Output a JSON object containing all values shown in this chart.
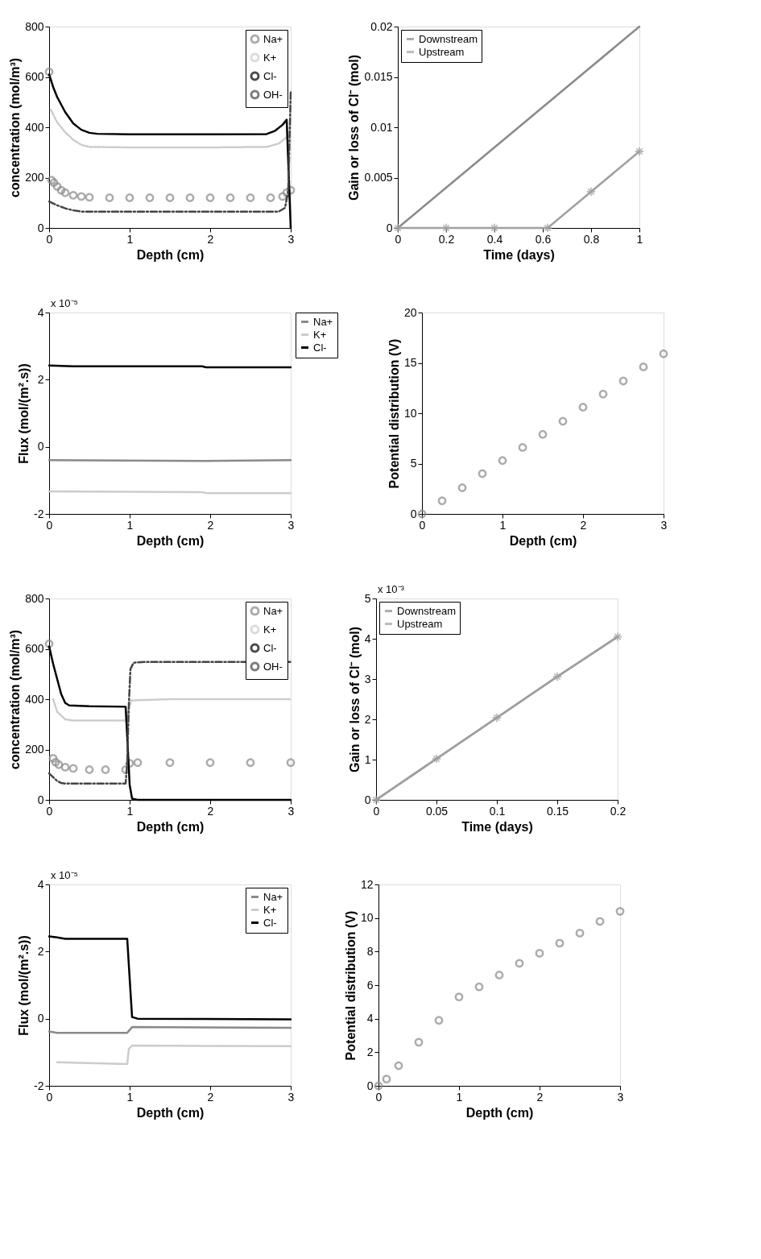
{
  "chart_data": [
    {
      "type": "line",
      "xlabel": "Depth (cm)",
      "ylabel": "concentration (mol/m³)",
      "xlim": [
        0,
        3
      ],
      "ylim": [
        0,
        800
      ],
      "xticks": [
        0,
        1,
        2,
        3
      ],
      "yticks": [
        0,
        200,
        400,
        600,
        800
      ],
      "legend": "top right",
      "series": [
        {
          "name": "Na+",
          "type": "scatter",
          "marker": "circle",
          "color": "#8a8a8a",
          "x": [
            0,
            0.03,
            0.06,
            0.1,
            0.15,
            0.2,
            0.3,
            0.4,
            0.5,
            0.75,
            1,
            1.25,
            1.5,
            1.75,
            2,
            2.25,
            2.5,
            2.75,
            2.9,
            2.95,
            3
          ],
          "values": [
            620,
            190,
            180,
            165,
            150,
            140,
            130,
            125,
            122,
            120,
            120,
            120,
            120,
            120,
            120,
            120,
            120,
            120,
            125,
            140,
            150
          ]
        },
        {
          "name": "K+",
          "line_style": "dotted",
          "color": "#cccccc",
          "x": [
            0.02,
            0.1,
            0.2,
            0.3,
            0.4,
            0.5,
            1,
            2,
            2.7,
            2.85,
            2.95
          ],
          "values": [
            470,
            420,
            380,
            350,
            330,
            322,
            320,
            320,
            322,
            335,
            360
          ]
        },
        {
          "name": "Cl-",
          "line_style": "solid",
          "color": "#000000",
          "x": [
            0,
            0.05,
            0.1,
            0.2,
            0.3,
            0.4,
            0.5,
            0.6,
            1,
            2,
            2.7,
            2.8,
            2.9,
            2.95,
            3
          ],
          "values": [
            610,
            560,
            520,
            460,
            415,
            390,
            378,
            374,
            372,
            372,
            373,
            385,
            410,
            430,
            0
          ]
        },
        {
          "name": "OH-",
          "line_style": "dashed",
          "color": "#444444",
          "x": [
            0,
            0.1,
            0.2,
            0.3,
            0.4,
            1,
            2,
            2.85,
            2.93,
            2.97,
            3
          ],
          "values": [
            105,
            90,
            78,
            70,
            65,
            65,
            65,
            65,
            80,
            150,
            540
          ]
        }
      ]
    },
    {
      "type": "line",
      "xlabel": "Time (days)",
      "ylabel": "Gain or loss of Cl⁻ (mol)",
      "xlim": [
        0,
        1
      ],
      "ylim": [
        0,
        0.02
      ],
      "xticks": [
        0,
        0.2,
        0.4,
        0.6,
        0.8,
        1
      ],
      "yticks": [
        0,
        0.005,
        0.01,
        0.015,
        0.02
      ],
      "legend": "top left",
      "series": [
        {
          "name": "Downstream",
          "line_style": "solid",
          "color": "#8a8a8a",
          "x": [
            0,
            0.25,
            0.5,
            0.75,
            1
          ],
          "values": [
            0,
            0.005,
            0.01,
            0.015,
            0.02
          ]
        },
        {
          "name": "Upstream",
          "line_style": "solid",
          "marker": "cross",
          "color": "#a0a0a0",
          "x": [
            0,
            0.2,
            0.4,
            0.62,
            0.8,
            1
          ],
          "values": [
            0,
            0,
            0,
            0,
            0.0036,
            0.0076
          ]
        }
      ]
    },
    {
      "type": "line",
      "xlabel": "Depth (cm)",
      "ylabel": "Flux (mol/(m².s))",
      "annotations": [
        "x 10⁻⁵"
      ],
      "xlim": [
        0,
        3
      ],
      "ylim": [
        -2,
        4
      ],
      "xticks": [
        0,
        1,
        2,
        3
      ],
      "yticks": [
        -2,
        0,
        2,
        4
      ],
      "legend": "right",
      "series": [
        {
          "name": "Na+",
          "line_style": "solid",
          "color": "#8a8a8a",
          "x": [
            0,
            1.9,
            3
          ],
          "values": [
            -0.4,
            -0.42,
            -0.4
          ]
        },
        {
          "name": "K+",
          "line_style": "solid",
          "color": "#cccccc",
          "x": [
            0,
            1.9,
            1.95,
            3
          ],
          "values": [
            -1.33,
            -1.35,
            -1.38,
            -1.38
          ]
        },
        {
          "name": "Cl-",
          "line_style": "solid",
          "color": "#000000",
          "x": [
            0,
            0.3,
            1.9,
            1.95,
            3
          ],
          "values": [
            2.42,
            2.4,
            2.4,
            2.37,
            2.37
          ]
        }
      ]
    },
    {
      "type": "scatter",
      "xlabel": "Depth (cm)",
      "ylabel": "Potential distribution (V)",
      "xlim": [
        0,
        3
      ],
      "ylim": [
        0,
        20
      ],
      "xticks": [
        0,
        1,
        2,
        3
      ],
      "yticks": [
        0,
        5,
        10,
        15,
        20
      ],
      "marker": "circle",
      "series": [
        {
          "color": "#8a8a8a",
          "x": [
            0,
            0.25,
            0.5,
            0.75,
            1,
            1.25,
            1.5,
            1.75,
            2,
            2.25,
            2.5,
            2.75,
            3
          ],
          "values": [
            0,
            1.3,
            2.6,
            4.0,
            5.3,
            6.6,
            7.9,
            9.2,
            10.6,
            11.9,
            13.2,
            14.6,
            15.9
          ]
        }
      ]
    },
    {
      "type": "line",
      "xlabel": "Depth (cm)",
      "ylabel": "concentration (mol/m³)",
      "xlim": [
        0,
        3
      ],
      "ylim": [
        0,
        800
      ],
      "xticks": [
        0,
        1,
        2,
        3
      ],
      "yticks": [
        0,
        200,
        400,
        600,
        800
      ],
      "legend": "top right",
      "series": [
        {
          "name": "Na+",
          "type": "scatter",
          "marker": "circle",
          "color": "#8a8a8a",
          "x": [
            0,
            0.05,
            0.08,
            0.12,
            0.2,
            0.3,
            0.5,
            0.7,
            0.95,
            1.0,
            1.1,
            1.5,
            2,
            2.5,
            3
          ],
          "values": [
            620,
            165,
            150,
            140,
            130,
            125,
            120,
            120,
            120,
            145,
            148,
            148,
            148,
            148,
            148
          ]
        },
        {
          "name": "K+",
          "line_style": "dotted",
          "color": "#cccccc",
          "x": [
            0.05,
            0.1,
            0.2,
            0.3,
            0.5,
            0.95,
            0.98,
            1.02,
            1.5,
            2,
            3
          ],
          "values": [
            400,
            350,
            320,
            315,
            315,
            315,
            350,
            395,
            400,
            400,
            400
          ]
        },
        {
          "name": "Cl-",
          "line_style": "solid",
          "color": "#000000",
          "x": [
            0,
            0.05,
            0.1,
            0.15,
            0.2,
            0.25,
            0.5,
            0.95,
            0.97,
            1.0,
            1.03,
            1.1,
            2,
            3
          ],
          "values": [
            610,
            540,
            480,
            420,
            385,
            375,
            372,
            370,
            250,
            60,
            5,
            0,
            0,
            0
          ]
        },
        {
          "name": "OH-",
          "line_style": "dashed",
          "color": "#444444",
          "x": [
            0,
            0.05,
            0.1,
            0.15,
            0.2,
            0.5,
            0.95,
            0.97,
            0.99,
            1.01,
            1.05,
            1.2,
            2,
            3
          ],
          "values": [
            105,
            90,
            75,
            67,
            65,
            65,
            65,
            150,
            380,
            520,
            545,
            548,
            548,
            548
          ]
        }
      ]
    },
    {
      "type": "line",
      "xlabel": "Time (days)",
      "ylabel": "Gain or loss of Cl⁻ (mol)",
      "annotations": [
        "x 10⁻³"
      ],
      "xlim": [
        0,
        0.2
      ],
      "ylim": [
        0,
        5
      ],
      "xticks": [
        0,
        0.05,
        0.1,
        0.15,
        0.2
      ],
      "yticks": [
        0,
        1,
        2,
        3,
        4,
        5
      ],
      "legend": "top left",
      "series": [
        {
          "name": "Downstream",
          "line_style": "solid",
          "color": "#8a8a8a",
          "x": [
            0,
            0.05,
            0.1,
            0.15,
            0.2
          ],
          "values": [
            0,
            1.02,
            2.04,
            3.06,
            4.05
          ]
        },
        {
          "name": "Upstream",
          "line_style": "solid",
          "marker": "cross",
          "color": "#a0a0a0",
          "x": [
            0,
            0.05,
            0.1,
            0.15,
            0.2
          ],
          "values": [
            0,
            1.02,
            2.04,
            3.06,
            4.05
          ]
        }
      ]
    },
    {
      "type": "line",
      "xlabel": "Depth (cm)",
      "ylabel": "Flux (mol/(m².s))",
      "annotations": [
        "x 10⁻⁵"
      ],
      "xlim": [
        0,
        3
      ],
      "ylim": [
        -2,
        4
      ],
      "xticks": [
        0,
        1,
        2,
        3
      ],
      "yticks": [
        -2,
        0,
        2,
        4
      ],
      "legend": "top right",
      "series": [
        {
          "name": "Na+",
          "line_style": "solid",
          "color": "#8a8a8a",
          "x": [
            0,
            0.1,
            0.97,
            1.03,
            3
          ],
          "values": [
            -0.38,
            -0.42,
            -0.42,
            -0.25,
            -0.27
          ]
        },
        {
          "name": "K+",
          "line_style": "solid",
          "color": "#cccccc",
          "x": [
            0.1,
            0.97,
            0.99,
            1.03,
            3
          ],
          "values": [
            -1.3,
            -1.35,
            -0.9,
            -0.8,
            -0.82
          ]
        },
        {
          "name": "Cl-",
          "line_style": "solid",
          "color": "#000000",
          "x": [
            0,
            0.1,
            0.2,
            0.97,
            1.0,
            1.03,
            1.1,
            3
          ],
          "values": [
            2.45,
            2.42,
            2.38,
            2.38,
            1.2,
            0.05,
            0,
            -0.02
          ]
        }
      ]
    },
    {
      "type": "scatter",
      "xlabel": "Depth (cm)",
      "ylabel": "Potential distribution (V)",
      "xlim": [
        0,
        3
      ],
      "ylim": [
        0,
        12
      ],
      "xticks": [
        0,
        1,
        2,
        3
      ],
      "yticks": [
        0,
        2,
        4,
        6,
        8,
        10,
        12
      ],
      "marker": "circle",
      "series": [
        {
          "color": "#8a8a8a",
          "x": [
            0,
            0.1,
            0.25,
            0.5,
            0.75,
            1,
            1.25,
            1.5,
            1.75,
            2,
            2.25,
            2.5,
            2.75,
            3
          ],
          "values": [
            0,
            0.4,
            1.2,
            2.6,
            3.9,
            5.3,
            5.9,
            6.6,
            7.3,
            7.9,
            8.5,
            9.1,
            9.8,
            10.4
          ]
        }
      ]
    }
  ]
}
